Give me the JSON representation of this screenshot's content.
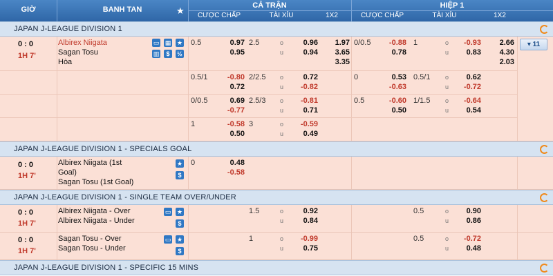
{
  "header": {
    "col_time": "GIỜ",
    "col_match": "BANH TAN",
    "full_match": "CẢ TRẬN",
    "first_half": "HIỆP 1",
    "handicap": "CƯỢC CHẤP",
    "over_under": "TÀI XỈU",
    "onextwo": "1X2",
    "handicap_h1": "CƯỢC CHẤP",
    "over_under_h1": "TÀI XỈU",
    "onextwo_h1": "1X2"
  },
  "ou_marks": {
    "over": "o",
    "under": "u"
  },
  "leagues": [
    {
      "title": "JAPAN J-LEAGUE DIVISION 1"
    },
    {
      "title": "JAPAN J-LEAGUE DIVISION 1 - SPECIALS GOAL"
    },
    {
      "title": "JAPAN J-LEAGUE DIVISION 1 - SINGLE TEAM OVER/UNDER"
    },
    {
      "title": "JAPAN J-LEAGUE DIVISION 1 - SPECIFIC 15 MINS"
    }
  ],
  "match1": {
    "score": "0 : 0",
    "time": "1H 7'",
    "home": "Albirex Niigata",
    "away": "Sagan Tosu",
    "draw": "Hòa",
    "more": "▾ 11",
    "rows": [
      {
        "hc": "0.5",
        "hc_h": "0.97",
        "hc_a": "0.95",
        "ou": "2.5",
        "ou_o": "0.96",
        "ou_u": "0.94",
        "x1": "1.97",
        "x2": "3.65",
        "xx": "3.35",
        "h1_hc": "0/0.5",
        "h1_hc_h": "-0.88",
        "h1_hc_a": "0.78",
        "h1_ou": "1",
        "h1_ou_o": "-0.93",
        "h1_ou_u": "0.83",
        "h1_x1": "2.66",
        "h1_x2": "4.30",
        "h1_xx": "2.03"
      },
      {
        "hc": "0.5/1",
        "hc_h": "-0.80",
        "hc_a": "0.72",
        "ou": "2/2.5",
        "ou_o": "0.72",
        "ou_u": "-0.82",
        "h1_hc": "0",
        "h1_hc_h": "0.53",
        "h1_hc_a": "-0.63",
        "h1_ou": "0.5/1",
        "h1_ou_o": "0.62",
        "h1_ou_u": "-0.72"
      },
      {
        "hc": "0/0.5",
        "hc_h": "0.69",
        "hc_a": "-0.77",
        "ou": "2.5/3",
        "ou_o": "-0.81",
        "ou_u": "0.71",
        "h1_hc": "0.5",
        "h1_hc_h": "-0.60",
        "h1_hc_a": "0.50",
        "h1_ou": "1/1.5",
        "h1_ou_o": "-0.64",
        "h1_ou_u": "0.54"
      },
      {
        "hc": "1",
        "hc_h": "-0.58",
        "hc_a": "0.50",
        "ou": "3",
        "ou_o": "-0.59",
        "ou_u": "0.49"
      }
    ]
  },
  "match2": {
    "score": "0 : 0",
    "time": "1H 7'",
    "home": "Albirex Niigata (1st",
    "home2": "Goal)",
    "away": "Sagan Tosu (1st Goal)",
    "hc": "0",
    "hc_h": "0.48",
    "hc_a": "-0.58"
  },
  "match3": {
    "score": "0 : 0",
    "time": "1H 7'",
    "home": "Albirex Niigata - Over",
    "away": "Albirex Niigata - Under",
    "ou": "1.5",
    "ou_o": "0.92",
    "ou_u": "0.84",
    "h1_ou": "0.5",
    "h1_ou_o": "0.90",
    "h1_ou_u": "0.86"
  },
  "match4": {
    "score": "0 : 0",
    "time": "1H 7'",
    "home": "Sagan Tosu - Over",
    "away": "Sagan Tosu - Under",
    "ou": "1",
    "ou_o": "-0.99",
    "ou_u": "0.75",
    "h1_ou": "0.5",
    "h1_ou_o": "-0.72",
    "h1_ou_u": "0.48"
  }
}
